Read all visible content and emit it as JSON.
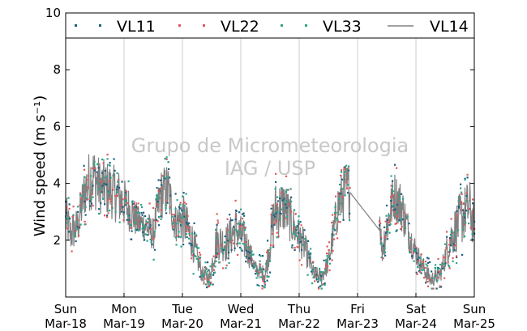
{
  "chart_data": {
    "type": "line",
    "ylabel": "Wind speed (m s⁻¹)",
    "ylim": [
      0,
      10
    ],
    "yticks": [
      2,
      4,
      6,
      8,
      10
    ],
    "x_start": "2012-03-18",
    "x_end": "2012-03-25",
    "xticks": [
      {
        "date": "2012-03-18",
        "day": "Sun",
        "label": "Mar-18"
      },
      {
        "date": "2012-03-19",
        "day": "Mon",
        "label": "Mar-19"
      },
      {
        "date": "2012-03-20",
        "day": "Tue",
        "label": "Mar-20"
      },
      {
        "date": "2012-03-21",
        "day": "Wed",
        "label": "Mar-21"
      },
      {
        "date": "2012-03-22",
        "day": "Thu",
        "label": "Mar-22"
      },
      {
        "date": "2012-03-23",
        "day": "Fri",
        "label": "Mar-23"
      },
      {
        "date": "2012-03-24",
        "day": "Sat",
        "label": "Mar-24"
      },
      {
        "date": "2012-03-25",
        "day": "Sun",
        "label": "Mar-25"
      }
    ],
    "grid": "vertical",
    "legend_position": "top",
    "watermark": [
      "Grupo de Micrometeorologia",
      "IAG / USP"
    ],
    "series": [
      {
        "name": "VL11",
        "style": "dots",
        "color": "#1f5f80"
      },
      {
        "name": "VL22",
        "style": "dots",
        "color": "#e05a5a"
      },
      {
        "name": "VL33",
        "style": "dots",
        "color": "#2aa58a"
      },
      {
        "name": "VL14",
        "style": "line",
        "color": "#808080"
      }
    ],
    "trend": {
      "times": [
        "2012-03-18 00:00",
        "2012-03-18 02:00",
        "2012-03-18 05:00",
        "2012-03-18 08:00",
        "2012-03-18 11:00",
        "2012-03-18 14:00",
        "2012-03-18 18:00",
        "2012-03-18 22:00",
        "2012-03-19 02:00",
        "2012-03-19 06:00",
        "2012-03-19 09:00",
        "2012-03-19 12:00",
        "2012-03-19 15:00",
        "2012-03-19 18:00",
        "2012-03-19 21:00",
        "2012-03-20 00:00",
        "2012-03-20 04:00",
        "2012-03-20 08:00",
        "2012-03-20 11:00",
        "2012-03-20 14:00",
        "2012-03-20 18:00",
        "2012-03-20 22:00",
        "2012-03-21 02:00",
        "2012-03-21 06:00",
        "2012-03-21 10:00",
        "2012-03-21 14:00",
        "2012-03-21 18:00",
        "2012-03-21 22:00",
        "2012-03-22 02:00",
        "2012-03-22 06:00",
        "2012-03-22 09:00",
        "2012-03-22 12:00",
        "2012-03-22 16:00",
        "2012-03-22 19:00",
        "2012-03-23 09:00",
        "2012-03-23 10:00",
        "2012-03-23 12:00",
        "2012-03-23 15:00",
        "2012-03-23 18:00",
        "2012-03-23 22:00",
        "2012-03-24 02:00",
        "2012-03-24 06:00",
        "2012-03-24 10:00",
        "2012-03-24 14:00",
        "2012-03-24 18:00",
        "2012-03-24 22:00",
        "2012-03-25 00:00"
      ],
      "values": [
        2.8,
        2.2,
        2.5,
        3.8,
        4.3,
        3.9,
        3.8,
        3.5,
        3.1,
        2.6,
        2.5,
        2.2,
        3.6,
        3.8,
        2.6,
        2.8,
        2.0,
        0.8,
        0.6,
        2.0,
        1.9,
        2.4,
        1.9,
        1.0,
        0.8,
        3.0,
        3.2,
        2.4,
        1.8,
        0.8,
        0.7,
        1.2,
        3.2,
        3.8,
        3.0,
        1.6,
        2.5,
        3.6,
        3.2,
        2.0,
        1.2,
        0.6,
        0.8,
        2.0,
        2.7,
        3.2,
        2.4
      ],
      "noise": [
        0.9,
        0.7,
        0.7,
        1.0,
        1.2,
        1.0,
        1.0,
        1.0,
        0.8,
        0.6,
        0.6,
        0.6,
        0.9,
        1.0,
        0.7,
        0.9,
        0.7,
        0.3,
        0.3,
        0.7,
        0.7,
        0.8,
        0.7,
        0.3,
        0.3,
        1.1,
        1.0,
        0.7,
        0.6,
        0.3,
        0.3,
        0.4,
        0.9,
        1.0,
        0.7,
        0.5,
        0.8,
        0.9,
        0.9,
        0.6,
        0.4,
        0.3,
        0.3,
        0.7,
        1.0,
        1.0,
        0.8
      ],
      "gap": {
        "start": "2012-03-22 21:00",
        "end": "2012-03-23 09:00"
      }
    }
  }
}
